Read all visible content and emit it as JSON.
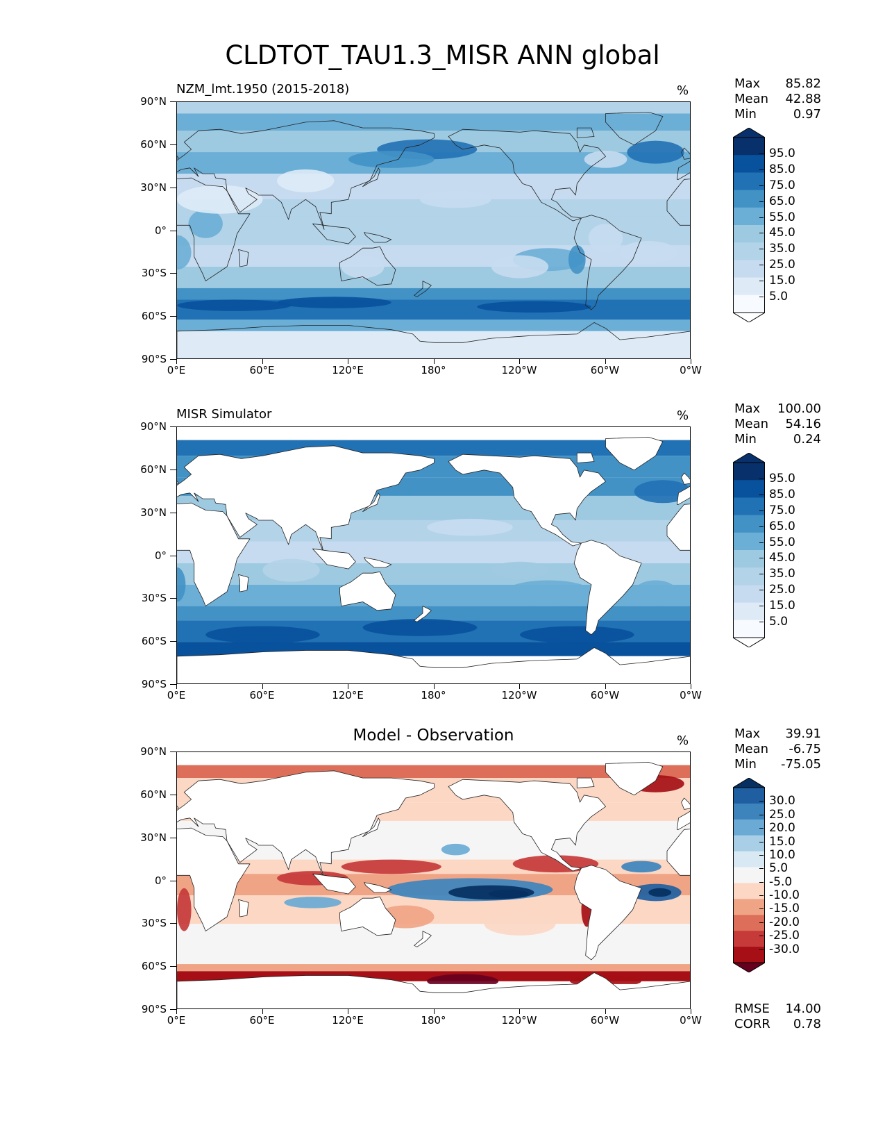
{
  "title": "CLDTOT_TAU1.3_MISR ANN global",
  "axes": {
    "y_ticks": [
      "90°N",
      "60°N",
      "30°N",
      "0°",
      "30°S",
      "60°S",
      "90°S"
    ],
    "x_ticks": [
      "0°E",
      "60°E",
      "120°E",
      "180°",
      "120°W",
      "60°W",
      "0°W"
    ]
  },
  "colors": {
    "blues": [
      "#f7fbff",
      "#deebf7",
      "#c6dbef",
      "#b3d3e8",
      "#9ecae1",
      "#6baed6",
      "#4292c6",
      "#2171b5",
      "#08519c",
      "#08306b"
    ],
    "rdbu": [
      "#67001f",
      "#a50f15",
      "#c63a3a",
      "#dd6f5a",
      "#f0a486",
      "#fbd7c4",
      "#f5f5f5",
      "#d9e9f3",
      "#a8cfe5",
      "#6aaad4",
      "#3d84bd",
      "#1f5fa1",
      "#053061"
    ]
  },
  "panels": [
    {
      "id": "model",
      "left_title": "NZM_lmt.1950 (2015-2018)",
      "center_title": "",
      "units": "%",
      "stats": [
        {
          "label": "Max",
          "value": "85.82"
        },
        {
          "label": "Mean",
          "value": "42.88"
        },
        {
          "label": "Min",
          "value": "0.97"
        }
      ],
      "colorbar_labels": [
        "95.0",
        "85.0",
        "75.0",
        "65.0",
        "55.0",
        "45.0",
        "35.0",
        "25.0",
        "15.0",
        "5.0"
      ],
      "extra_stats": []
    },
    {
      "id": "obs",
      "left_title": "MISR Simulator",
      "center_title": "",
      "units": "%",
      "stats": [
        {
          "label": "Max",
          "value": "100.00"
        },
        {
          "label": "Mean",
          "value": "54.16"
        },
        {
          "label": "Min",
          "value": "0.24"
        }
      ],
      "colorbar_labels": [
        "95.0",
        "85.0",
        "75.0",
        "65.0",
        "55.0",
        "45.0",
        "35.0",
        "25.0",
        "15.0",
        "5.0"
      ],
      "extra_stats": []
    },
    {
      "id": "diff",
      "left_title": "",
      "center_title": "Model - Observation",
      "units": "%",
      "stats": [
        {
          "label": "Max",
          "value": "39.91"
        },
        {
          "label": "Mean",
          "value": "-6.75"
        },
        {
          "label": "Min",
          "value": "-75.05"
        }
      ],
      "colorbar_labels": [
        "30.0",
        "25.0",
        "20.0",
        "15.0",
        "10.0",
        "5.0",
        "-5.0",
        "-10.0",
        "-15.0",
        "-20.0",
        "-25.0",
        "-30.0"
      ],
      "extra_stats": [
        {
          "label": "RMSE",
          "value": "14.00"
        },
        {
          "label": "CORR",
          "value": "0.78"
        }
      ]
    }
  ],
  "chart_data": [
    {
      "type": "heatmap",
      "title": "NZM_lmt.1950 (2015-2018)",
      "units": "%",
      "xlim": [
        0,
        360
      ],
      "ylim": [
        -90,
        90
      ],
      "levels": [
        0,
        10,
        20,
        30,
        40,
        50,
        60,
        70,
        80,
        90,
        100
      ],
      "stats": {
        "max": 85.82,
        "mean": 42.88,
        "min": 0.97
      }
    },
    {
      "type": "heatmap",
      "title": "MISR Simulator",
      "units": "%",
      "xlim": [
        0,
        360
      ],
      "ylim": [
        -90,
        90
      ],
      "levels": [
        0,
        10,
        20,
        30,
        40,
        50,
        60,
        70,
        80,
        90,
        100
      ],
      "stats": {
        "max": 100.0,
        "mean": 54.16,
        "min": 0.24
      }
    },
    {
      "type": "heatmap",
      "title": "Model - Observation",
      "units": "%",
      "xlim": [
        0,
        360
      ],
      "ylim": [
        -90,
        90
      ],
      "levels": [
        -35,
        -30,
        -25,
        -20,
        -15,
        -10,
        -5,
        5,
        10,
        15,
        20,
        25,
        30,
        35
      ],
      "stats": {
        "max": 39.91,
        "mean": -6.75,
        "min": -75.05,
        "rmse": 14.0,
        "corr": 0.78
      }
    }
  ]
}
